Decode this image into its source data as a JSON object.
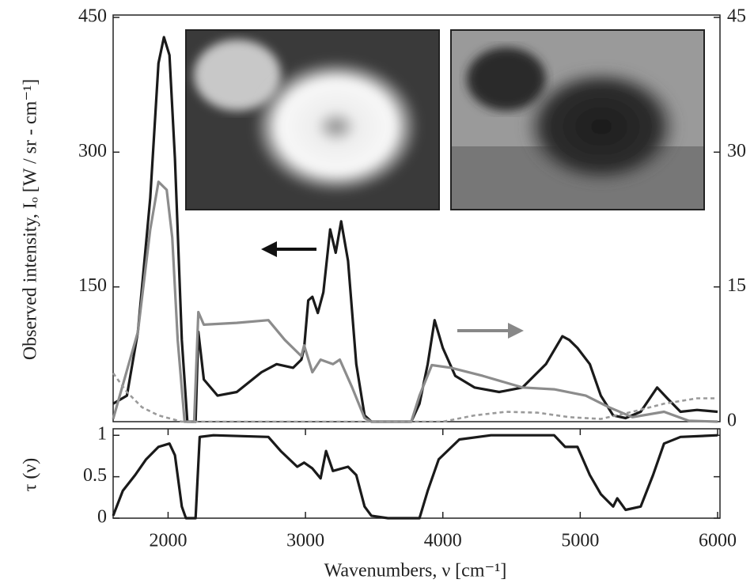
{
  "chart_data": [
    {
      "type": "line",
      "ylabel": "Observed intensity, Iₒ [W / sr - cm⁻¹]",
      "xlim": [
        1600,
        6000
      ],
      "ylim": [
        0,
        450
      ],
      "yticks": [
        150,
        300,
        450
      ],
      "y2lim": [
        0,
        45
      ],
      "y2ticks": [
        0,
        15,
        30,
        45
      ],
      "series": [
        {
          "color": "#1a1a1a",
          "dash": false,
          "x": [
            1600,
            1700,
            1780,
            1870,
            1930,
            1970,
            2010,
            2050,
            2100,
            2140,
            2200,
            2220,
            2260,
            2360,
            2500,
            2680,
            2790,
            2910,
            2970,
            2990,
            3020,
            3050,
            3090,
            3130,
            3180,
            3220,
            3260,
            3310,
            3370,
            3430,
            3480,
            3770,
            3830,
            3890,
            3940,
            4000,
            4090,
            4230,
            4410,
            4580,
            4750,
            4870,
            4920,
            4980,
            5070,
            5150,
            5240,
            5330,
            5440,
            5560,
            5640,
            5730,
            5850,
            6000
          ],
          "values": [
            20,
            29,
            100,
            249,
            399,
            428,
            408,
            293,
            91,
            0,
            0,
            100,
            47,
            29,
            33,
            55,
            64,
            60,
            69,
            82,
            135,
            139,
            121,
            144,
            214,
            188,
            223,
            179,
            64,
            7,
            0,
            0,
            20,
            64,
            113,
            82,
            51,
            38,
            33,
            38,
            64,
            95,
            91,
            82,
            64,
            29,
            7,
            4,
            11,
            38,
            25,
            11,
            13,
            11
          ]
        },
        {
          "color": "#8c8c8c",
          "dash": false,
          "axis": "y2",
          "x": [
            1600,
            1780,
            1870,
            1930,
            1990,
            2030,
            2070,
            2120,
            2190,
            2220,
            2260,
            2500,
            2730,
            2850,
            2970,
            2990,
            3050,
            3110,
            3200,
            3250,
            3340,
            3430,
            3480,
            3770,
            3830,
            3920,
            4060,
            4290,
            4580,
            4810,
            5040,
            5210,
            5380,
            5610,
            5790,
            6000
          ],
          "values": [
            0.3,
            10,
            21.4,
            26.7,
            25.8,
            20.5,
            9.1,
            0,
            0,
            12.2,
            10.8,
            11,
            11.3,
            9.1,
            7.3,
            8.5,
            5.5,
            6.9,
            6.4,
            6.9,
            3.8,
            0.4,
            0,
            0,
            2.9,
            6.3,
            6.0,
            5.1,
            3.8,
            3.6,
            2.9,
            1.6,
            0.5,
            1.1,
            0.1,
            0
          ]
        },
        {
          "color": "#9a9a9a",
          "dash": true,
          "axis": "y2",
          "x": [
            1600,
            1700,
            1810,
            1930,
            2100,
            4000,
            4230,
            4460,
            4690,
            4920,
            5150,
            5380,
            5610,
            5850,
            6000
          ],
          "values": [
            5.4,
            3.3,
            1.6,
            0.7,
            0,
            0,
            0.7,
            1.1,
            1.0,
            0.5,
            0.3,
            1.1,
            2.0,
            2.6,
            2.6
          ]
        }
      ]
    },
    {
      "type": "line",
      "ylabel": "τ (ν)",
      "xlabel": "Wavenumbers, ν [cm⁻¹]",
      "xlim": [
        1600,
        6000
      ],
      "xticks": [
        2000,
        3000,
        4000,
        5000,
        6000
      ],
      "ylim": [
        0,
        1.05
      ],
      "yticks": [
        0,
        0.5,
        1
      ],
      "series": [
        {
          "color": "#1a1a1a",
          "dash": false,
          "x": [
            1600,
            1670,
            1760,
            1840,
            1930,
            2010,
            2050,
            2100,
            2130,
            2200,
            2230,
            2330,
            2730,
            2820,
            2940,
            2990,
            3050,
            3110,
            3150,
            3200,
            3310,
            3370,
            3430,
            3480,
            3600,
            3830,
            3890,
            3970,
            4120,
            4350,
            4810,
            4890,
            4980,
            5070,
            5150,
            5240,
            5270,
            5330,
            5440,
            5530,
            5610,
            5730,
            6000
          ],
          "values": [
            0.03,
            0.33,
            0.52,
            0.71,
            0.86,
            0.9,
            0.76,
            0.14,
            0,
            0,
            0.98,
            1,
            0.98,
            0.81,
            0.62,
            0.67,
            0.6,
            0.48,
            0.81,
            0.57,
            0.62,
            0.52,
            0.14,
            0.03,
            0,
            0,
            0.33,
            0.71,
            0.95,
            1,
            1,
            0.86,
            0.86,
            0.52,
            0.29,
            0.14,
            0.24,
            0.1,
            0.14,
            0.52,
            0.9,
            0.98,
            1
          ]
        }
      ]
    }
  ]
}
